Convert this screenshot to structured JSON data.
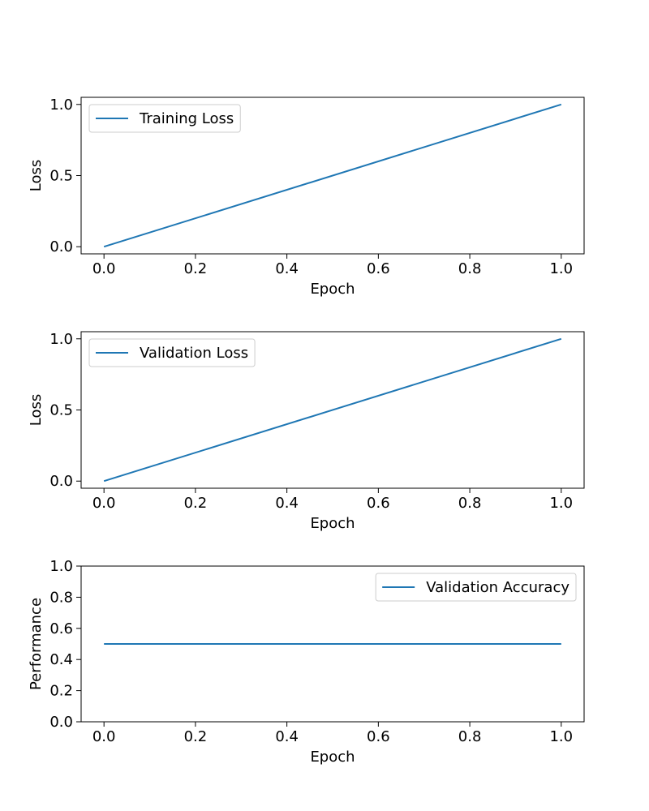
{
  "chart_data": [
    {
      "type": "line",
      "xlabel": "Epoch",
      "ylabel": "Loss",
      "xlim": [
        -0.05,
        1.05
      ],
      "ylim": [
        -0.05,
        1.05
      ],
      "xticks": [
        0.0,
        0.2,
        0.4,
        0.6,
        0.8,
        1.0
      ],
      "xtick_labels": [
        "0.0",
        "0.2",
        "0.4",
        "0.6",
        "0.8",
        "1.0"
      ],
      "yticks": [
        0.0,
        0.5,
        1.0
      ],
      "ytick_labels": [
        "0.0",
        "0.5",
        "1.0"
      ],
      "grid": false,
      "legend": "upper-left",
      "series": [
        {
          "name": "Training Loss",
          "color": "#1f77b4",
          "x": [
            0.0,
            1.0
          ],
          "y": [
            0.0,
            1.0
          ]
        }
      ]
    },
    {
      "type": "line",
      "xlabel": "Epoch",
      "ylabel": "Loss",
      "xlim": [
        -0.05,
        1.05
      ],
      "ylim": [
        -0.05,
        1.05
      ],
      "xticks": [
        0.0,
        0.2,
        0.4,
        0.6,
        0.8,
        1.0
      ],
      "xtick_labels": [
        "0.0",
        "0.2",
        "0.4",
        "0.6",
        "0.8",
        "1.0"
      ],
      "yticks": [
        0.0,
        0.5,
        1.0
      ],
      "ytick_labels": [
        "0.0",
        "0.5",
        "1.0"
      ],
      "grid": false,
      "legend": "upper-left",
      "series": [
        {
          "name": "Validation Loss",
          "color": "#1f77b4",
          "x": [
            0.0,
            1.0
          ],
          "y": [
            0.0,
            1.0
          ]
        }
      ]
    },
    {
      "type": "line",
      "xlabel": "Epoch",
      "ylabel": "Performance",
      "xlim": [
        -0.05,
        1.05
      ],
      "ylim": [
        0.0,
        1.0
      ],
      "xticks": [
        0.0,
        0.2,
        0.4,
        0.6,
        0.8,
        1.0
      ],
      "xtick_labels": [
        "0.0",
        "0.2",
        "0.4",
        "0.6",
        "0.8",
        "1.0"
      ],
      "yticks": [
        0.0,
        0.2,
        0.4,
        0.6,
        0.8,
        1.0
      ],
      "ytick_labels": [
        "0.0",
        "0.2",
        "0.4",
        "0.6",
        "0.8",
        "1.0"
      ],
      "grid": false,
      "legend": "upper-right",
      "series": [
        {
          "name": "Validation Accuracy",
          "color": "#1f77b4",
          "x": [
            0.0,
            1.0
          ],
          "y": [
            0.5,
            0.5
          ]
        }
      ]
    }
  ]
}
